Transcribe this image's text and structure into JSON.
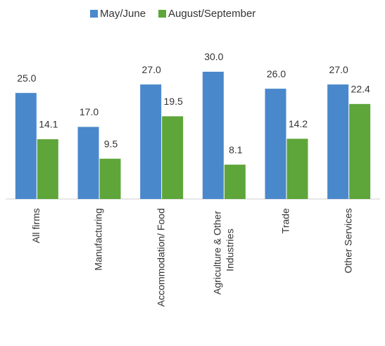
{
  "chart_data": {
    "type": "bar",
    "categories": [
      "All firms",
      "Manufacturing",
      "Accommodation/ Food",
      "Agriculture & Other Industries",
      "Trade",
      "Other Services"
    ],
    "series": [
      {
        "name": "May/June",
        "color": "#4a88cc",
        "values": [
          25.0,
          17.0,
          27.0,
          30.0,
          26.0,
          27.0
        ],
        "value_labels": [
          "25.0",
          "17.0",
          "27.0",
          "30.0",
          "26.0",
          "27.0"
        ]
      },
      {
        "name": "August/September",
        "color": "#5ea53a",
        "values": [
          14.1,
          9.5,
          19.5,
          8.1,
          14.2,
          22.4
        ],
        "value_labels": [
          "14.1",
          "9.5",
          "19.5",
          "8.1",
          "14.2",
          "22.4"
        ]
      }
    ],
    "legend": "top"
  }
}
